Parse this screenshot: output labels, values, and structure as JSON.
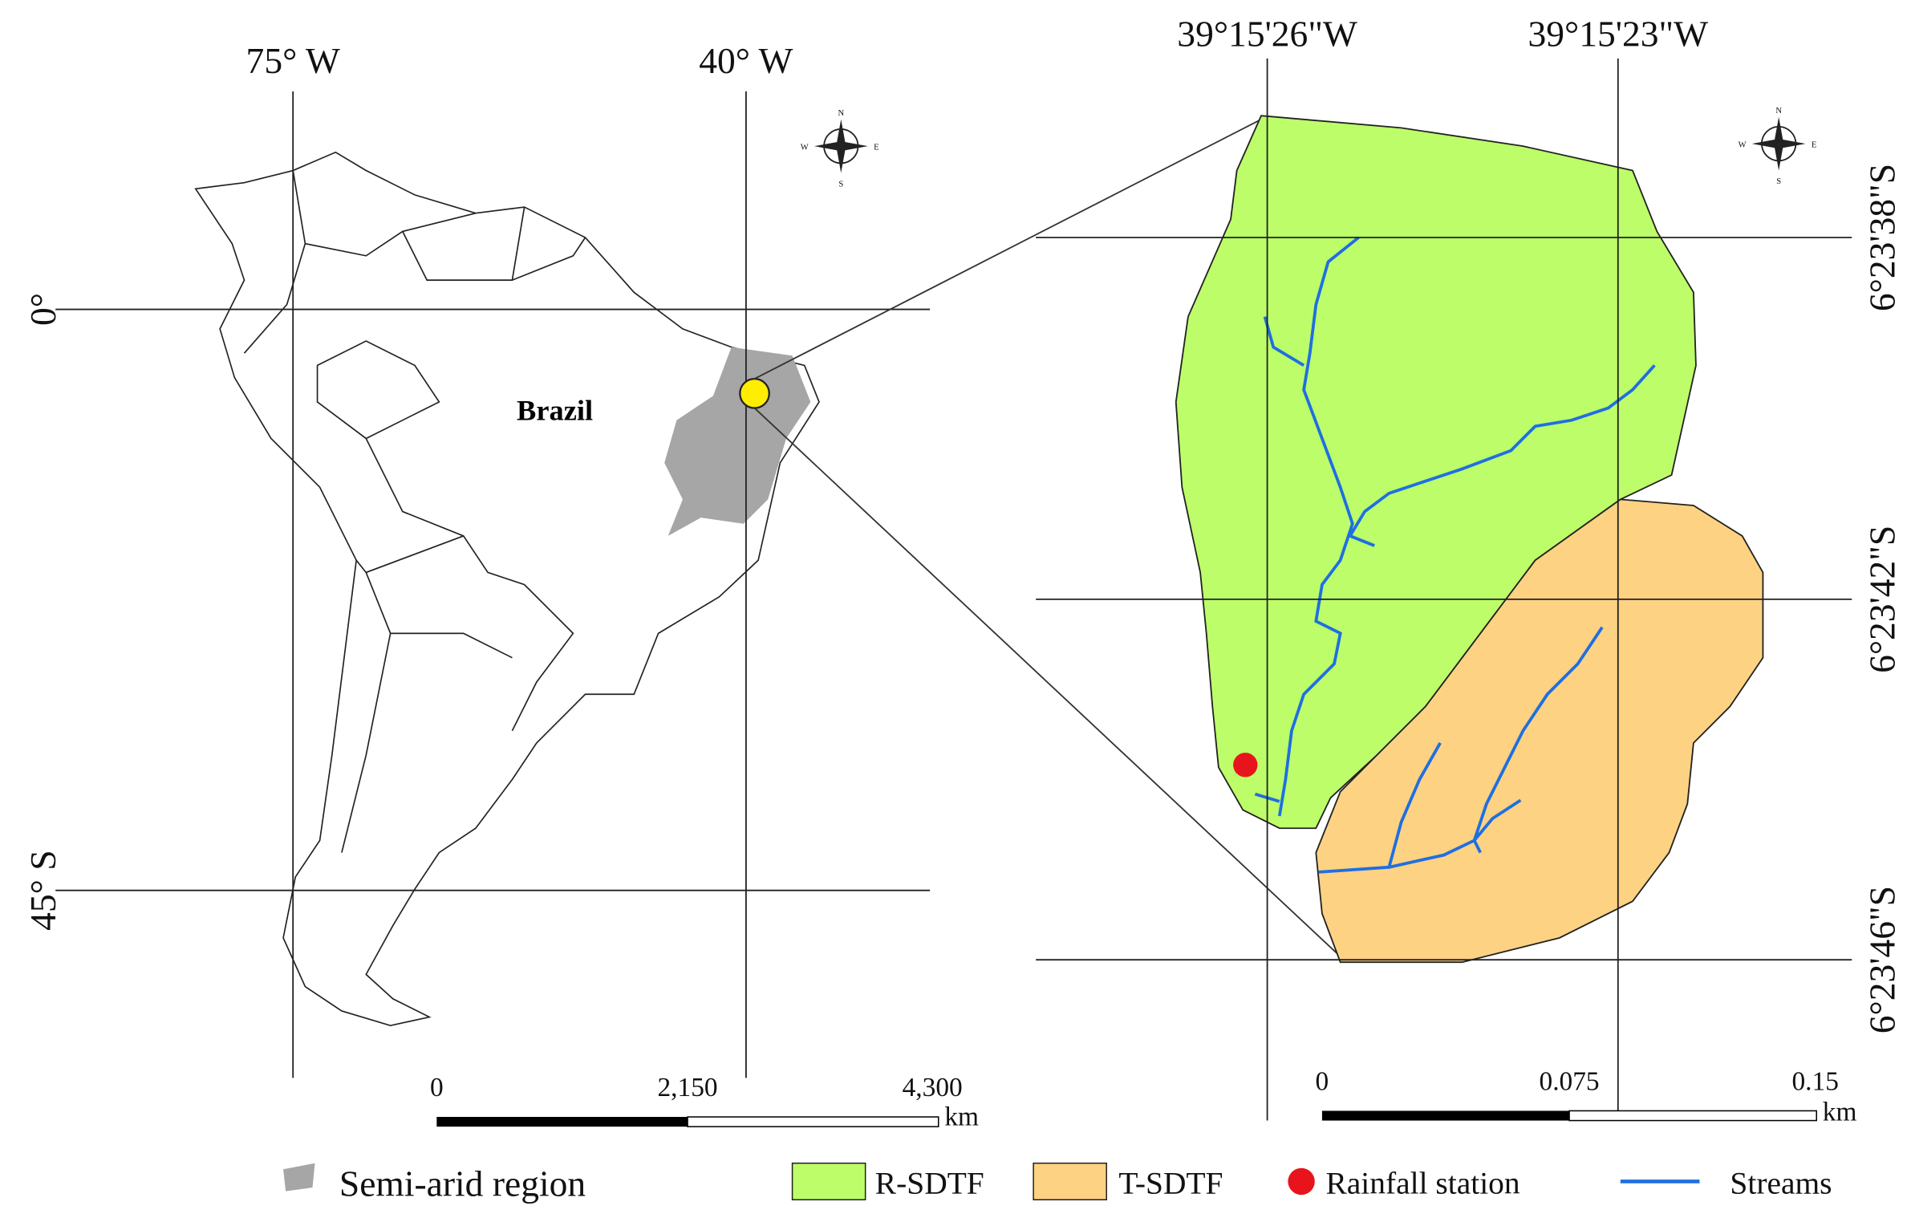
{
  "left_map": {
    "lon_labels": [
      "75° W",
      "40° W"
    ],
    "lat_labels": [
      "0°",
      "45° S"
    ],
    "country_label": "Brazil",
    "scale": {
      "ticks": [
        "0",
        "2,150",
        "4,300"
      ],
      "unit": "km"
    },
    "compass": {
      "n": "N",
      "w": "W",
      "e": "E",
      "s": "S"
    }
  },
  "right_map": {
    "lon_labels": [
      "39°15'26\"W",
      "39°15'23\"W"
    ],
    "lat_labels": [
      "6°23'38\"S",
      "6°23'42\"S",
      "6°23'46\"S"
    ],
    "scale": {
      "ticks": [
        "0",
        "0.075",
        "0.15"
      ],
      "unit": "km"
    },
    "compass": {
      "n": "N",
      "w": "W",
      "e": "E",
      "s": "S"
    }
  },
  "legend": {
    "items": [
      "Semi-arid region",
      "R-SDTF",
      "T-SDTF",
      "Rainfall station",
      "Streams"
    ]
  }
}
